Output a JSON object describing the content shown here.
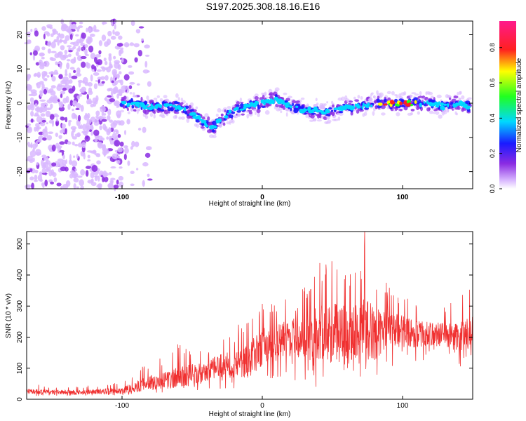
{
  "title": "S197.2025.308.18.16.E16",
  "colors": {
    "snr_line": "#f03030",
    "axis": "#000000",
    "background": "#ffffff"
  },
  "chart_data": [
    {
      "type": "heatmap",
      "name": "spectrogram",
      "xlabel": "Height of straight line (km)",
      "ylabel": "Frequency (Hz)",
      "xlim": [
        -168,
        150
      ],
      "ylim": [
        -25,
        24
      ],
      "xticks": [
        -100,
        0,
        100
      ],
      "yticks": [
        -20,
        -10,
        0,
        10,
        20
      ],
      "colorbar": {
        "label": "Normalized spectral amplitude",
        "range": [
          0,
          0.95
        ],
        "ticks": [
          0.0,
          0.2,
          0.4,
          0.6,
          0.8
        ],
        "tick_labels": [
          "0.0",
          "0.2",
          "0.4",
          "0.6",
          "0.8"
        ],
        "colormap": "rainbow (violet-blue-cyan-green-yellow-red-magenta)"
      },
      "ridge": {
        "description": "Main signal trace frequency vs height",
        "x": [
          -100,
          -80,
          -60,
          -50,
          -40,
          -35,
          -30,
          -20,
          -10,
          0,
          10,
          20,
          30,
          40,
          45,
          50,
          60,
          70,
          80,
          90,
          100,
          110,
          120,
          130,
          140,
          148
        ],
        "y": [
          0,
          -1,
          -1,
          -3,
          -6,
          -7,
          -5,
          -2,
          -1,
          0,
          1,
          -1,
          -2,
          -2,
          -3,
          -2,
          -1,
          -1,
          0,
          0,
          0,
          0,
          0,
          -1,
          0,
          -1
        ],
        "peak_amplitude_x_range": [
          82,
          112
        ]
      },
      "noise_region_x": [
        -168,
        -100
      ]
    },
    {
      "type": "line",
      "name": "snr",
      "xlabel": "Height of straight line (km)",
      "ylabel": "SNR (10 * v/v)",
      "xlim": [
        -168,
        150
      ],
      "ylim": [
        0,
        540
      ],
      "xticks": [
        -100,
        0,
        100
      ],
      "yticks": [
        0,
        100,
        200,
        300,
        400,
        500
      ],
      "series": [
        {
          "name": "SNR",
          "color": "#f03030",
          "envelope_x": [
            -168,
            -130,
            -100,
            -90,
            -80,
            -70,
            -60,
            -50,
            -40,
            -30,
            -20,
            -10,
            0,
            10,
            20,
            30,
            40,
            50,
            60,
            70,
            73,
            80,
            90,
            100,
            110,
            120,
            130,
            140,
            150
          ],
          "envelope_mean": [
            25,
            22,
            28,
            40,
            55,
            60,
            70,
            80,
            85,
            110,
            110,
            120,
            170,
            180,
            200,
            200,
            210,
            220,
            210,
            230,
            230,
            210,
            220,
            220,
            210,
            210,
            210,
            200,
            210
          ],
          "envelope_peak": [
            50,
            40,
            60,
            95,
            130,
            135,
            180,
            180,
            160,
            200,
            230,
            280,
            340,
            330,
            330,
            360,
            440,
            450,
            440,
            460,
            540,
            430,
            370,
            350,
            320,
            300,
            300,
            330,
            370
          ],
          "envelope_min": [
            10,
            12,
            12,
            15,
            20,
            20,
            25,
            25,
            25,
            25,
            30,
            40,
            50,
            60,
            60,
            50,
            30,
            40,
            40,
            50,
            50,
            60,
            90,
            120,
            120,
            130,
            110,
            100,
            120
          ]
        }
      ]
    }
  ]
}
